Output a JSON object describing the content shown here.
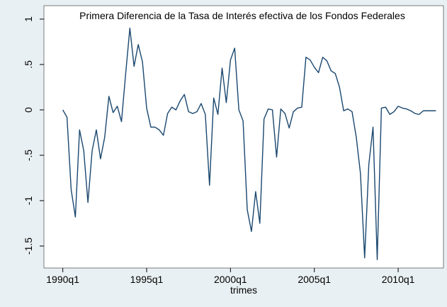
{
  "chart_data": {
    "type": "line",
    "title": "Primera Diferencia de la Tasa de Interés  efectiva de los Fondos Federales",
    "x_label": "trimes",
    "x": [
      120,
      121,
      122,
      123,
      124,
      125,
      126,
      127,
      128,
      129,
      130,
      131,
      132,
      133,
      134,
      135,
      136,
      137,
      138,
      139,
      140,
      141,
      142,
      143,
      144,
      145,
      146,
      147,
      148,
      149,
      150,
      151,
      152,
      153,
      154,
      155,
      156,
      157,
      158,
      159,
      160,
      161,
      162,
      163,
      164,
      165,
      166,
      167,
      168,
      169,
      170,
      171,
      172,
      173,
      174,
      175,
      176,
      177,
      178,
      179,
      180,
      181,
      182,
      183,
      184,
      185,
      186,
      187,
      188,
      189,
      190,
      191,
      192,
      193,
      194,
      195,
      196,
      197,
      198,
      199,
      200,
      201,
      202,
      203,
      204,
      205,
      206,
      207,
      208,
      209
    ],
    "series": [
      {
        "color": "#1a476f",
        "values": [
          0,
          -0.08,
          -0.88,
          -1.18,
          -0.22,
          -0.45,
          -1.02,
          -0.45,
          -0.22,
          -0.54,
          -0.3,
          0.15,
          -0.03,
          0.04,
          -0.13,
          0.4,
          0.9,
          0.48,
          0.72,
          0.53,
          0.02,
          -0.19,
          -0.19,
          -0.22,
          -0.28,
          -0.04,
          0.03,
          0,
          0.1,
          0.17,
          -0.02,
          -0.04,
          -0.02,
          0.07,
          -0.05,
          -0.83,
          0.13,
          -0.05,
          0.46,
          0.08,
          0.55,
          0.68,
          0,
          -0.12,
          -1.1,
          -1.34,
          -0.9,
          -1.25,
          -0.1,
          0.01,
          0,
          -0.52,
          0.01,
          -0.04,
          -0.2,
          -0.02,
          0.02,
          0.03,
          0.58,
          0.55,
          0.47,
          0.41,
          0.58,
          0.54,
          0.43,
          0.4,
          0.25,
          -0.01,
          0.01,
          -0.02,
          -0.3,
          -0.7,
          -1.63,
          -0.6,
          -0.19,
          -1.65,
          0.02,
          0.03,
          -0.05,
          -0.02,
          0.04,
          0.02,
          0.01,
          -0.01,
          -0.04,
          -0.05,
          -0.01,
          -0.01,
          -0.01,
          -0.01
        ]
      }
    ],
    "xlim": [
      115.5,
      210.8
    ],
    "xticks": [
      {
        "value": 120,
        "label": "1990q1"
      },
      {
        "value": 140,
        "label": "1995q1"
      },
      {
        "value": 160,
        "label": "2000q1"
      },
      {
        "value": 180,
        "label": "2005q1"
      },
      {
        "value": 200,
        "label": "2010q1"
      }
    ],
    "ylim": [
      -1.742,
      1.148
    ],
    "yticks": [
      1,
      {
        "value": 0.5,
        "label": ".5"
      },
      0,
      {
        "value": -0.5,
        "label": "-.5"
      },
      -1,
      {
        "value": -1.5,
        "label": "-1.5"
      }
    ],
    "grid": false
  }
}
